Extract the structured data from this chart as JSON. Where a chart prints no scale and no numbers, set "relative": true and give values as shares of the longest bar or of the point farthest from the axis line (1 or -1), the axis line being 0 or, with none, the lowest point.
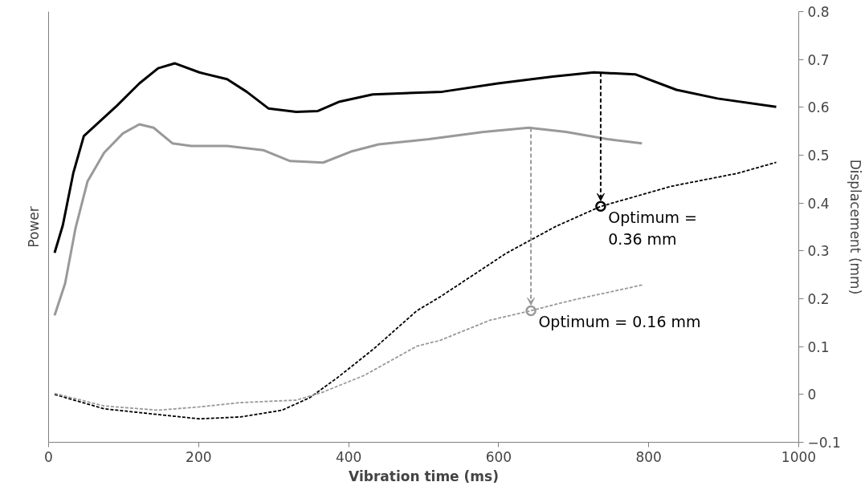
{
  "chart_data": {
    "type": "line",
    "xlabel": "Vibration time (ms)",
    "ylabel": "Power",
    "y2label": "Displacement (mm)",
    "relative": true,
    "xlim": [
      0,
      1000
    ],
    "xticks": [
      0,
      200,
      400,
      600,
      800,
      1000
    ],
    "y2lim": [
      -0.1,
      0.8
    ],
    "y2ticks": [
      -0.1,
      0,
      0.1,
      0.2,
      0.3,
      0.4,
      0.5,
      0.6,
      0.7,
      0.8
    ],
    "grid": false,
    "series": [
      {
        "color": "#000000",
        "line_style": "solid",
        "axis": "y",
        "x": [
          8,
          19,
          33,
          47,
          63,
          91,
          121,
          146,
          168,
          201,
          238,
          264,
          293,
          330,
          359,
          388,
          432,
          525,
          599,
          672,
          727,
          782,
          837,
          892,
          970
        ],
        "values": [
          0.5,
          0.573,
          0.711,
          0.808,
          0.837,
          0.888,
          0.947,
          0.987,
          1,
          0.976,
          0.958,
          0.925,
          0.881,
          0.872,
          0.874,
          0.899,
          0.918,
          0.925,
          0.947,
          0.965,
          0.976,
          0.971,
          0.93,
          0.907,
          0.885
        ]
      },
      {
        "color": "#999999",
        "line_style": "solid",
        "axis": "y",
        "x": [
          8,
          22,
          36,
          52,
          74,
          99,
          121,
          140,
          165,
          190,
          238,
          286,
          322,
          366,
          403,
          440,
          507,
          580,
          640,
          690,
          745,
          791
        ],
        "values": [
          0.335,
          0.419,
          0.566,
          0.689,
          0.764,
          0.815,
          0.839,
          0.83,
          0.789,
          0.782,
          0.782,
          0.771,
          0.742,
          0.738,
          0.767,
          0.786,
          0.8,
          0.819,
          0.83,
          0.819,
          0.8,
          0.789
        ]
      },
      {
        "color": "#000000",
        "line_style": "dashed",
        "axis": "y2",
        "x": [
          8,
          74,
          146,
          201,
          256,
          311,
          348,
          385,
          434,
          491,
          522,
          610,
          676,
          736,
          830,
          918,
          970
        ],
        "values": [
          0.0,
          -0.03,
          -0.042,
          -0.051,
          -0.047,
          -0.033,
          -0.007,
          0.035,
          0.096,
          0.175,
          0.204,
          0.295,
          0.351,
          0.393,
          0.435,
          0.462,
          0.485
        ]
      },
      {
        "color": "#999999",
        "line_style": "dashed",
        "axis": "y2",
        "x": [
          8,
          74,
          146,
          201,
          256,
          330,
          366,
          421,
          491,
          522,
          588,
          643,
          698,
          792
        ],
        "values": [
          0.002,
          -0.024,
          -0.033,
          -0.026,
          -0.017,
          -0.012,
          0.005,
          0.04,
          0.101,
          0.113,
          0.155,
          0.175,
          0.197,
          0.229
        ]
      },
      {
        "type": "scatter",
        "marker": "circle",
        "axis": "y2",
        "colors": [
          "#000000",
          "#999999"
        ],
        "x": [
          736,
          643
        ],
        "values": [
          0.393,
          0.175
        ]
      }
    ],
    "annotations": [
      "Optimum =\n0.36 mm",
      "Optimum = 0.16 mm"
    ]
  }
}
